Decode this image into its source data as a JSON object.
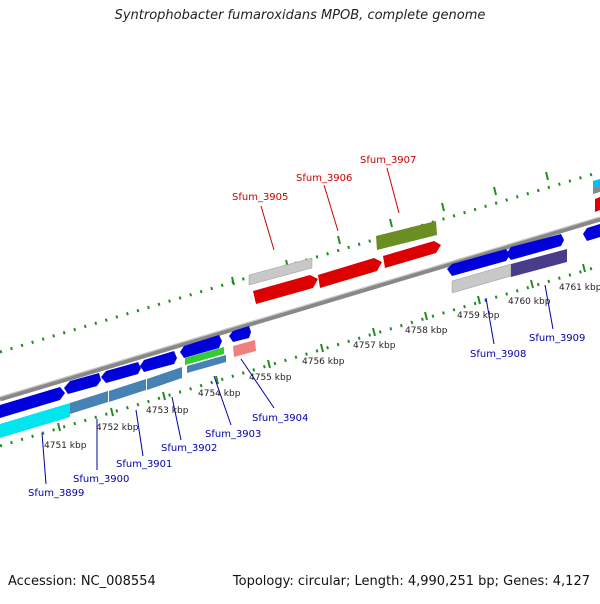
{
  "title": "Syntrophobacter fumaroxidans MPOB, complete genome",
  "footer": {
    "accession": "Accession: NC_008554",
    "summary": "Topology: circular; Length: 4,990,251 bp; Genes: 4,127"
  },
  "colors": {
    "backbone": "#888888",
    "tick": "#228b22",
    "label_forward": "#cc0000",
    "label_reverse": "#0000aa",
    "scale_text": "#222222"
  },
  "scale": {
    "labels": [
      "4751 kbp",
      "4752 kbp",
      "4753 kbp",
      "4754 kbp",
      "4755 kbp",
      "4756 kbp",
      "4757 kbp",
      "4758 kbp",
      "4759 kbp",
      "4760 kbp",
      "4761 kbp"
    ]
  },
  "features": {
    "forward": [
      {
        "label": "Sfum_3905",
        "color": "#dd0000"
      },
      {
        "label": "Sfum_3906",
        "color": "#dd0000"
      },
      {
        "label": "Sfum_3907",
        "color": "#dd0000"
      }
    ],
    "reverse": [
      {
        "label": "Sfum_3899"
      },
      {
        "label": "Sfum_3900"
      },
      {
        "label": "Sfum_3901"
      },
      {
        "label": "Sfum_3902"
      },
      {
        "label": "Sfum_3903"
      },
      {
        "label": "Sfum_3904"
      },
      {
        "label": "Sfum_3908"
      },
      {
        "label": "Sfum_3909"
      }
    ]
  }
}
